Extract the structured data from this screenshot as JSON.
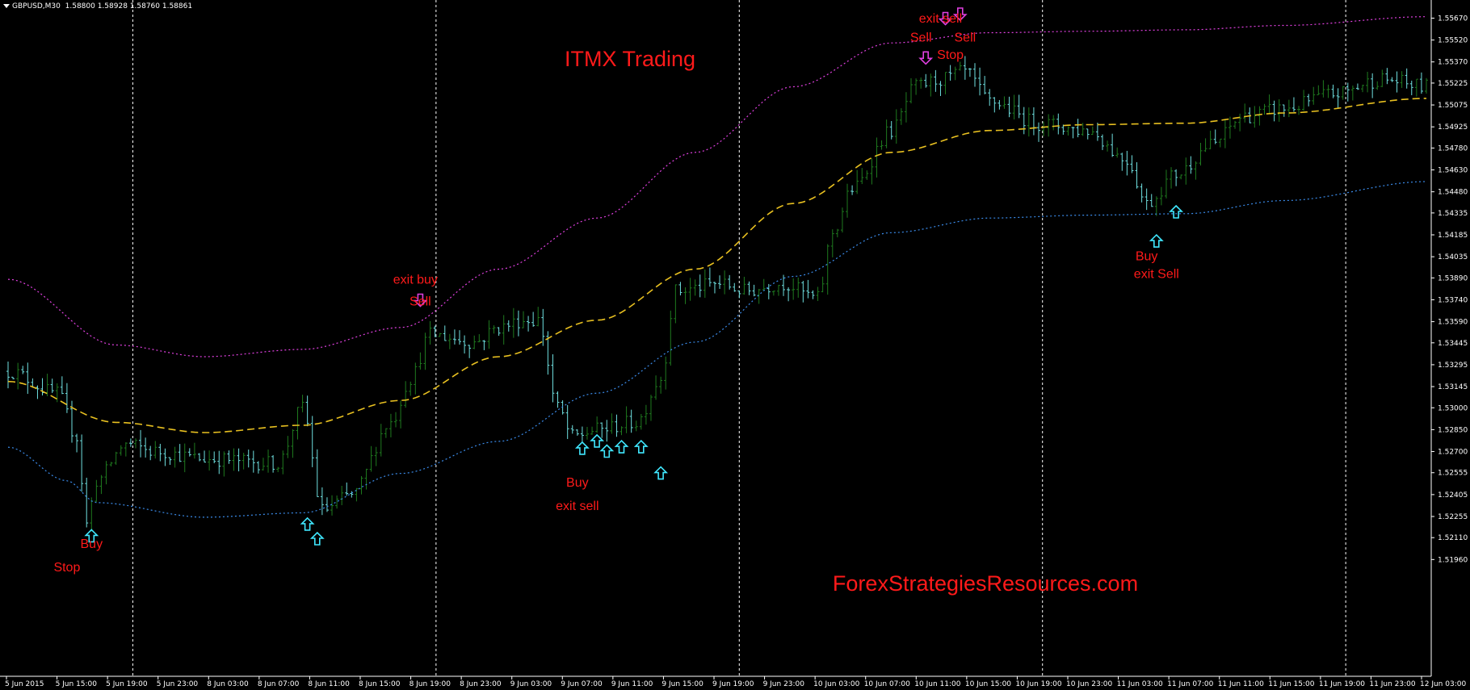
{
  "header": {
    "symbol_info": "GBPUSD,M30",
    "ohlc": "1.58800 1.58928 1.58760 1.58861"
  },
  "watermarks": {
    "title": "ITMX Trading",
    "site": "ForexStrategiesResources.com"
  },
  "colors": {
    "background": "#000000",
    "bull_bar": "#1f7a1f",
    "bear_bar": "#6fe0e0",
    "upper_band": "#e040e0",
    "middle_band": "#e8c020",
    "lower_band": "#3a8ae8",
    "signal_text": "#ff1a1a",
    "buy_arrow": "#40e8ff",
    "sell_arrow": "#e040e0",
    "separator": "#ffffff",
    "axis_text": "#ffffff"
  },
  "chart_data": {
    "type": "ohlc",
    "symbol": "GBPUSD",
    "timeframe": "M30",
    "ylim": [
      1.5116,
      1.5575
    ],
    "y_ticks": [
      "1.55670",
      "1.55520",
      "1.55370",
      "1.55225",
      "1.55075",
      "1.54925",
      "1.54780",
      "1.54630",
      "1.54480",
      "1.54335",
      "1.54185",
      "1.54035",
      "1.53890",
      "1.53740",
      "1.53590",
      "1.53445",
      "1.53295",
      "1.53145",
      "1.53000",
      "1.52850",
      "1.52700",
      "1.52555",
      "1.52405",
      "1.52255",
      "1.52110",
      "1.51960"
    ],
    "x_ticks": [
      "5 Jun 2015",
      "5 Jun 15:00",
      "5 Jun 19:00",
      "5 Jun 23:00",
      "8 Jun 03:00",
      "8 Jun 07:00",
      "8 Jun 11:00",
      "8 Jun 15:00",
      "8 Jun 19:00",
      "8 Jun 23:00",
      "9 Jun 03:00",
      "9 Jun 07:00",
      "9 Jun 11:00",
      "9 Jun 15:00",
      "9 Jun 19:00",
      "9 Jun 23:00",
      "10 Jun 03:00",
      "10 Jun 07:00",
      "10 Jun 11:00",
      "10 Jun 15:00",
      "10 Jun 19:00",
      "10 Jun 23:00",
      "11 Jun 03:00",
      "11 Jun 07:00",
      "11 Jun 11:00",
      "11 Jun 15:00",
      "11 Jun 19:00",
      "11 Jun 23:00",
      "12 Jun 03:00"
    ],
    "day_separators_after_tick": [
      2,
      8,
      14,
      20,
      26
    ],
    "bars_count": 290,
    "price_path": [
      [
        0,
        1.5325
      ],
      [
        10,
        1.531
      ],
      [
        14,
        1.528
      ],
      [
        16,
        1.522
      ],
      [
        18,
        1.525
      ],
      [
        24,
        1.5275
      ],
      [
        30,
        1.527
      ],
      [
        40,
        1.5265
      ],
      [
        55,
        1.5262
      ],
      [
        60,
        1.53
      ],
      [
        64,
        1.523
      ],
      [
        70,
        1.524
      ],
      [
        78,
        1.529
      ],
      [
        82,
        1.532
      ],
      [
        86,
        1.535
      ],
      [
        95,
        1.5345
      ],
      [
        100,
        1.5355
      ],
      [
        105,
        1.536
      ],
      [
        108,
        1.536
      ],
      [
        112,
        1.53
      ],
      [
        115,
        1.528
      ],
      [
        120,
        1.5285
      ],
      [
        128,
        1.529
      ],
      [
        133,
        1.532
      ],
      [
        136,
        1.538
      ],
      [
        145,
        1.5385
      ],
      [
        150,
        1.538
      ],
      [
        158,
        1.5385
      ],
      [
        165,
        1.5375
      ],
      [
        168,
        1.542
      ],
      [
        172,
        1.545
      ],
      [
        180,
        1.549
      ],
      [
        185,
        1.552
      ],
      [
        190,
        1.5525
      ],
      [
        195,
        1.553
      ],
      [
        200,
        1.551
      ],
      [
        210,
        1.5495
      ],
      [
        220,
        1.549
      ],
      [
        228,
        1.547
      ],
      [
        232,
        1.544
      ],
      [
        238,
        1.546
      ],
      [
        245,
        1.548
      ],
      [
        252,
        1.55
      ],
      [
        260,
        1.5505
      ],
      [
        270,
        1.5515
      ],
      [
        280,
        1.5525
      ],
      [
        289,
        1.552
      ]
    ],
    "upper_band_path": [
      [
        0,
        1.5388
      ],
      [
        22,
        1.5343
      ],
      [
        40,
        1.5335
      ],
      [
        60,
        1.534
      ],
      [
        80,
        1.5355
      ],
      [
        100,
        1.5395
      ],
      [
        120,
        1.543
      ],
      [
        140,
        1.5475
      ],
      [
        160,
        1.552
      ],
      [
        180,
        1.555
      ],
      [
        200,
        1.5557
      ],
      [
        220,
        1.5558
      ],
      [
        240,
        1.5559
      ],
      [
        260,
        1.5562
      ],
      [
        289,
        1.5568
      ]
    ],
    "middle_band_path": [
      [
        0,
        1.5318
      ],
      [
        22,
        1.529
      ],
      [
        40,
        1.5283
      ],
      [
        60,
        1.5288
      ],
      [
        80,
        1.5305
      ],
      [
        100,
        1.5335
      ],
      [
        120,
        1.536
      ],
      [
        140,
        1.5395
      ],
      [
        160,
        1.544
      ],
      [
        180,
        1.5475
      ],
      [
        200,
        1.549
      ],
      [
        220,
        1.5494
      ],
      [
        240,
        1.5495
      ],
      [
        260,
        1.5502
      ],
      [
        289,
        1.5512
      ]
    ],
    "lower_band_path": [
      [
        0,
        1.5273
      ],
      [
        12,
        1.525
      ],
      [
        18,
        1.5235
      ],
      [
        40,
        1.5225
      ],
      [
        60,
        1.5228
      ],
      [
        80,
        1.5255
      ],
      [
        100,
        1.5277
      ],
      [
        120,
        1.531
      ],
      [
        140,
        1.5345
      ],
      [
        160,
        1.539
      ],
      [
        180,
        1.542
      ],
      [
        200,
        1.543
      ],
      [
        220,
        1.5432
      ],
      [
        240,
        1.5433
      ],
      [
        260,
        1.5442
      ],
      [
        289,
        1.5455
      ]
    ],
    "annotations": [
      {
        "text": "Buy",
        "bar": 17,
        "price": 1.5204
      },
      {
        "text": "Stop",
        "bar": 12,
        "price": 1.5188
      },
      {
        "text": "exit buy",
        "bar": 83,
        "price": 1.5385
      },
      {
        "text": "Sell",
        "bar": 84,
        "price": 1.537
      },
      {
        "text": "Buy",
        "bar": 116,
        "price": 1.5246
      },
      {
        "text": "exit sell",
        "bar": 116,
        "price": 1.523
      },
      {
        "text": "exit sell",
        "bar": 190,
        "price": 1.5564
      },
      {
        "text": "Sell",
        "bar": 186,
        "price": 1.5551
      },
      {
        "text": "Sell",
        "bar": 195,
        "price": 1.5551
      },
      {
        "text": "Stop",
        "bar": 192,
        "price": 1.5539
      },
      {
        "text": "Buy",
        "bar": 232,
        "price": 1.5401
      },
      {
        "text": "exit Sell",
        "bar": 234,
        "price": 1.5389
      }
    ],
    "buy_arrows": [
      {
        "bar": 17,
        "price": 1.5212
      },
      {
        "bar": 61,
        "price": 1.522
      },
      {
        "bar": 63,
        "price": 1.521
      },
      {
        "bar": 117,
        "price": 1.5272
      },
      {
        "bar": 120,
        "price": 1.5277
      },
      {
        "bar": 122,
        "price": 1.527
      },
      {
        "bar": 125,
        "price": 1.5273
      },
      {
        "bar": 129,
        "price": 1.5273
      },
      {
        "bar": 133,
        "price": 1.5255
      },
      {
        "bar": 234,
        "price": 1.5414
      },
      {
        "bar": 238,
        "price": 1.5434
      }
    ],
    "sell_arrows": [
      {
        "bar": 84,
        "price": 1.5374
      },
      {
        "bar": 187,
        "price": 1.554
      },
      {
        "bar": 191,
        "price": 1.5567
      },
      {
        "bar": 194,
        "price": 1.557
      }
    ]
  }
}
